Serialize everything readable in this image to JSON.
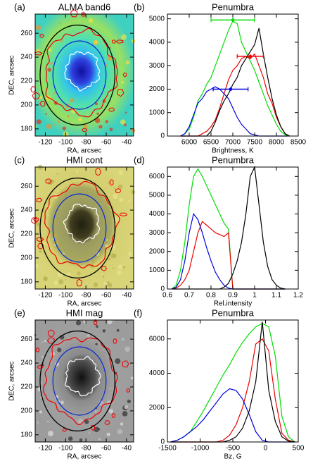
{
  "chart_data": [
    {
      "type": "image",
      "panel": "(a)",
      "title": "ALMA band6",
      "colormap": "jet",
      "xlabel": "RA, arcsec",
      "ylabel": "DEC, arcsec",
      "xlim": [
        -130,
        -33
      ],
      "ylim": [
        174,
        276
      ],
      "xticks": [
        -120,
        -100,
        -80,
        -60,
        -40
      ],
      "yticks": [
        180,
        200,
        220,
        240,
        260
      ]
    },
    {
      "type": "step",
      "panel": "(b)",
      "title": "Penumbra",
      "xlabel": "Brightness, K",
      "xlim": [
        5500,
        8500
      ],
      "ylim": [
        0,
        5200
      ],
      "xticks": [
        6000,
        6500,
        7000,
        7500,
        8000,
        8500
      ],
      "yticks": [
        0,
        1000,
        2000,
        3000,
        4000,
        5000
      ],
      "x": [
        5800,
        5900,
        6000,
        6100,
        6200,
        6300,
        6400,
        6500,
        6600,
        6700,
        6800,
        6900,
        7000,
        7100,
        7200,
        7300,
        7400,
        7500,
        7600,
        7700,
        7800,
        7900,
        8000,
        8100,
        8200,
        8300
      ],
      "series": [
        {
          "color": "#00dd00",
          "values": [
            0,
            100,
            300,
            800,
            1500,
            1800,
            2200,
            2500,
            3000,
            3500,
            4000,
            4500,
            4900,
            4800,
            4000,
            3600,
            3200,
            2800,
            2300,
            1800,
            1300,
            900,
            500,
            200,
            50,
            0
          ]
        },
        {
          "color": "#ee0000",
          "values": [
            0,
            0,
            0,
            0,
            0,
            100,
            200,
            400,
            700,
            1200,
            1800,
            2400,
            2800,
            3000,
            3300,
            3400,
            3300,
            3500,
            3000,
            2500,
            1800,
            1400,
            800,
            400,
            100,
            0
          ]
        },
        {
          "color": "#0000dd",
          "values": [
            0,
            100,
            400,
            900,
            1400,
            1600,
            1900,
            2000,
            2100,
            2000,
            1800,
            1600,
            1200,
            800,
            500,
            300,
            100,
            50,
            0,
            0,
            0,
            0,
            0,
            0,
            0,
            0
          ]
        },
        {
          "color": "#000000",
          "values": [
            0,
            0,
            0,
            0,
            0,
            0,
            0,
            200,
            600,
            1100,
            1500,
            1800,
            2200,
            2500,
            3000,
            3300,
            3600,
            3900,
            4600,
            3500,
            2500,
            1600,
            900,
            400,
            100,
            0
          ]
        }
      ],
      "errorbars": [
        {
          "color": "#00dd00",
          "x": 7000,
          "y": 4950,
          "xerr": 500
        },
        {
          "color": "#ee0000",
          "x": 7400,
          "y": 3400,
          "xerr": 300
        },
        {
          "color": "#0000dd",
          "x": 6950,
          "y": 2000,
          "xerr": 400
        }
      ]
    },
    {
      "type": "image",
      "panel": "(c)",
      "title": "HMI cont",
      "colormap": "olive",
      "xlabel": "RA, arcsec",
      "ylabel": "DEC, arcsec",
      "xlim": [
        -130,
        -33
      ],
      "ylim": [
        174,
        276
      ],
      "xticks": [
        -120,
        -100,
        -80,
        -60,
        -40
      ],
      "yticks": [
        180,
        200,
        220,
        240,
        260
      ]
    },
    {
      "type": "step",
      "panel": "(d)",
      "title": "Penumbra",
      "xlabel": "Rel.intensity",
      "xlim": [
        0.6,
        1.2
      ],
      "ylim": [
        0,
        6500
      ],
      "xticks": [
        0.6,
        0.7,
        0.8,
        0.9,
        1.0,
        1.1,
        1.2
      ],
      "yticks": [
        0,
        1000,
        2000,
        3000,
        4000,
        5000,
        6000
      ],
      "x": [
        0.62,
        0.64,
        0.66,
        0.68,
        0.7,
        0.72,
        0.74,
        0.76,
        0.78,
        0.8,
        0.82,
        0.84,
        0.86,
        0.88,
        0.9,
        0.92,
        0.94,
        0.96,
        0.98,
        1.0,
        1.02,
        1.04,
        1.06,
        1.08,
        1.1,
        1.12,
        1.14
      ],
      "series": [
        {
          "color": "#00dd00",
          "values": [
            0,
            200,
            1000,
            2500,
            4500,
            6000,
            6400,
            6000,
            5500,
            5000,
            4500,
            4000,
            3500,
            3200,
            0,
            0,
            0,
            0,
            0,
            0,
            0,
            0,
            0,
            0,
            0,
            0,
            0
          ]
        },
        {
          "color": "#ee0000",
          "values": [
            0,
            50,
            200,
            500,
            1000,
            2000,
            3000,
            3600,
            3400,
            3200,
            3000,
            2900,
            2800,
            3000,
            0,
            0,
            0,
            0,
            0,
            0,
            0,
            0,
            0,
            0,
            0,
            0,
            0
          ]
        },
        {
          "color": "#0000dd",
          "values": [
            0,
            100,
            500,
            1500,
            3000,
            4000,
            3700,
            3000,
            2200,
            1500,
            900,
            500,
            200,
            50,
            0,
            0,
            0,
            0,
            0,
            0,
            0,
            0,
            0,
            0,
            0,
            0,
            0
          ]
        },
        {
          "color": "#000000",
          "values": [
            0,
            0,
            0,
            0,
            0,
            0,
            0,
            0,
            0,
            0,
            0,
            0,
            100,
            300,
            800,
            1500,
            2500,
            4000,
            6000,
            6500,
            4500,
            2500,
            1200,
            500,
            200,
            50,
            0
          ]
        }
      ]
    },
    {
      "type": "image",
      "panel": "(e)",
      "title": "HMI mag",
      "colormap": "gray",
      "xlabel": "RA, arcsec",
      "ylabel": "DEC, arcsec",
      "xlim": [
        -130,
        -33
      ],
      "ylim": [
        174,
        276
      ],
      "xticks": [
        -120,
        -100,
        -80,
        -60,
        -40
      ],
      "yticks": [
        180,
        200,
        220,
        240,
        260
      ]
    },
    {
      "type": "step",
      "panel": "(f)",
      "title": "Penumbra",
      "xlabel": "Bz, G",
      "xlim": [
        -1500,
        500
      ],
      "ylim": [
        0,
        7100
      ],
      "xticks": [
        -1500,
        -1000,
        -500,
        0,
        500
      ],
      "yticks": [
        0,
        2000,
        4000,
        6000
      ],
      "x": [
        -1450,
        -1350,
        -1250,
        -1150,
        -1050,
        -950,
        -850,
        -750,
        -650,
        -550,
        -450,
        -350,
        -250,
        -150,
        -50,
        50,
        150,
        250,
        350,
        450
      ],
      "series": [
        {
          "color": "#00dd00",
          "values": [
            0,
            100,
            300,
            600,
            1200,
            1800,
            2500,
            3200,
            3900,
            4500,
            5200,
            5800,
            6300,
            6700,
            6900,
            6700,
            5000,
            1500,
            300,
            0
          ]
        },
        {
          "color": "#ee0000",
          "values": [
            0,
            0,
            0,
            0,
            0,
            0,
            0,
            0,
            100,
            400,
            1000,
            2000,
            3500,
            5700,
            6000,
            5300,
            2500,
            500,
            100,
            0
          ]
        },
        {
          "color": "#0000dd",
          "values": [
            0,
            100,
            300,
            600,
            900,
            1300,
            1800,
            2300,
            2800,
            3100,
            3000,
            2500,
            1600,
            600,
            100,
            0,
            0,
            0,
            0,
            0
          ]
        },
        {
          "color": "#000000",
          "values": [
            0,
            0,
            0,
            0,
            0,
            0,
            0,
            0,
            0,
            100,
            300,
            800,
            1800,
            3500,
            7000,
            3000,
            1200,
            300,
            50,
            0
          ]
        }
      ]
    }
  ]
}
